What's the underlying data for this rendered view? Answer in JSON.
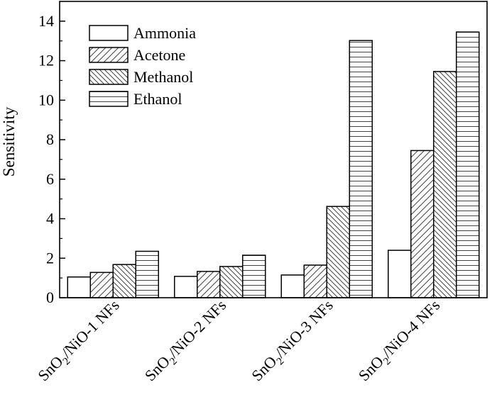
{
  "chart_data": {
    "type": "bar",
    "title": "",
    "xlabel": "",
    "ylabel": "Sensitivity",
    "ylim": [
      0,
      15
    ],
    "yticks": [
      0,
      2,
      4,
      6,
      8,
      10,
      12,
      14
    ],
    "grid": false,
    "legend_position": "top-left",
    "categories": [
      {
        "pre": "SnO",
        "sub": "2",
        "post": "/NiO-1 NFs"
      },
      {
        "pre": "SnO",
        "sub": "2",
        "post": "/NiO-2 NFs"
      },
      {
        "pre": "SnO",
        "sub": "2",
        "post": "/NiO-3 NFs"
      },
      {
        "pre": "SnO",
        "sub": "2",
        "post": "/NiO-4 NFs"
      }
    ],
    "series": [
      {
        "name": "Ammonia",
        "pattern": "none",
        "values": [
          1.05,
          1.08,
          1.15,
          2.4
        ]
      },
      {
        "name": "Acetone",
        "pattern": "diag-up",
        "values": [
          1.28,
          1.33,
          1.65,
          7.45
        ]
      },
      {
        "name": "Methanol",
        "pattern": "diag-down",
        "values": [
          1.68,
          1.58,
          4.62,
          11.45
        ]
      },
      {
        "name": "Ethanol",
        "pattern": "horizontal",
        "values": [
          2.35,
          2.15,
          13.02,
          13.45
        ]
      }
    ]
  }
}
